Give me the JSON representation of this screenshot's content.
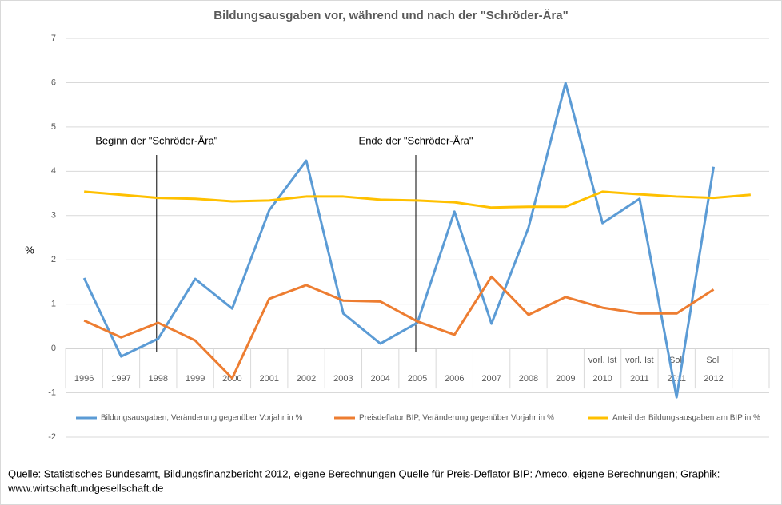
{
  "chart_data": {
    "type": "line",
    "title": "Bildungsausgaben vor, während und nach der \"Schröder-Ära\"",
    "y_label": "%",
    "categories": [
      "1996",
      "1997",
      "1998",
      "1999",
      "2000",
      "2001",
      "2002",
      "2003",
      "2004",
      "2005",
      "2006",
      "2007",
      "2008",
      "2009",
      "2010",
      "2011",
      "2011",
      "2012",
      null
    ],
    "category_notes": [
      null,
      null,
      null,
      null,
      null,
      null,
      null,
      null,
      null,
      null,
      null,
      null,
      null,
      null,
      "vorl. Ist",
      "vorl. Ist",
      "Soll",
      "Soll",
      null
    ],
    "series": [
      {
        "name": "Bildungsausgaben, Veränderung gegenüber Vorjahr in %",
        "color": "#5b9bd5",
        "values": [
          1.59,
          -0.18,
          0.22,
          1.57,
          0.9,
          3.12,
          4.24,
          0.79,
          0.11,
          0.58,
          3.09,
          0.56,
          2.73,
          5.99,
          2.83,
          3.38,
          -1.1,
          4.1,
          null
        ]
      },
      {
        "name": "Preisdeflator BIP, Veränderung gegenüber Vorjahr in %",
        "color": "#ed7d31",
        "values": [
          0.63,
          0.25,
          0.58,
          0.18,
          -0.67,
          1.12,
          1.43,
          1.08,
          1.06,
          0.61,
          0.31,
          1.62,
          0.76,
          1.16,
          0.92,
          0.79,
          0.79,
          1.33,
          null
        ]
      },
      {
        "name": "Anteil der Bildungsausgaben am BIP in %",
        "color": "#ffc000",
        "values": [
          3.54,
          3.47,
          3.4,
          3.38,
          3.32,
          3.34,
          3.43,
          3.43,
          3.36,
          3.34,
          3.3,
          3.18,
          3.2,
          3.2,
          3.54,
          3.48,
          3.43,
          3.4,
          3.47
        ]
      }
    ],
    "annotations": [
      "Beginn der \"Schröder-Ära\"",
      "Ende der \"Schröder-Ära\""
    ],
    "ylim": [
      -2,
      7
    ],
    "yticks": [
      -2,
      -1,
      0,
      1,
      2,
      3,
      4,
      5,
      6,
      7
    ],
    "grid": true,
    "source": [
      "Quelle: Statistisches Bundesamt, Bildungsfinanzbericht 2012, eigene Berechnungen Quelle für Preis-Deflator BIP: Ameco, eigene Berechnungen; Graphik:",
      "www.wirtschaftundgesellschaft.de"
    ]
  }
}
